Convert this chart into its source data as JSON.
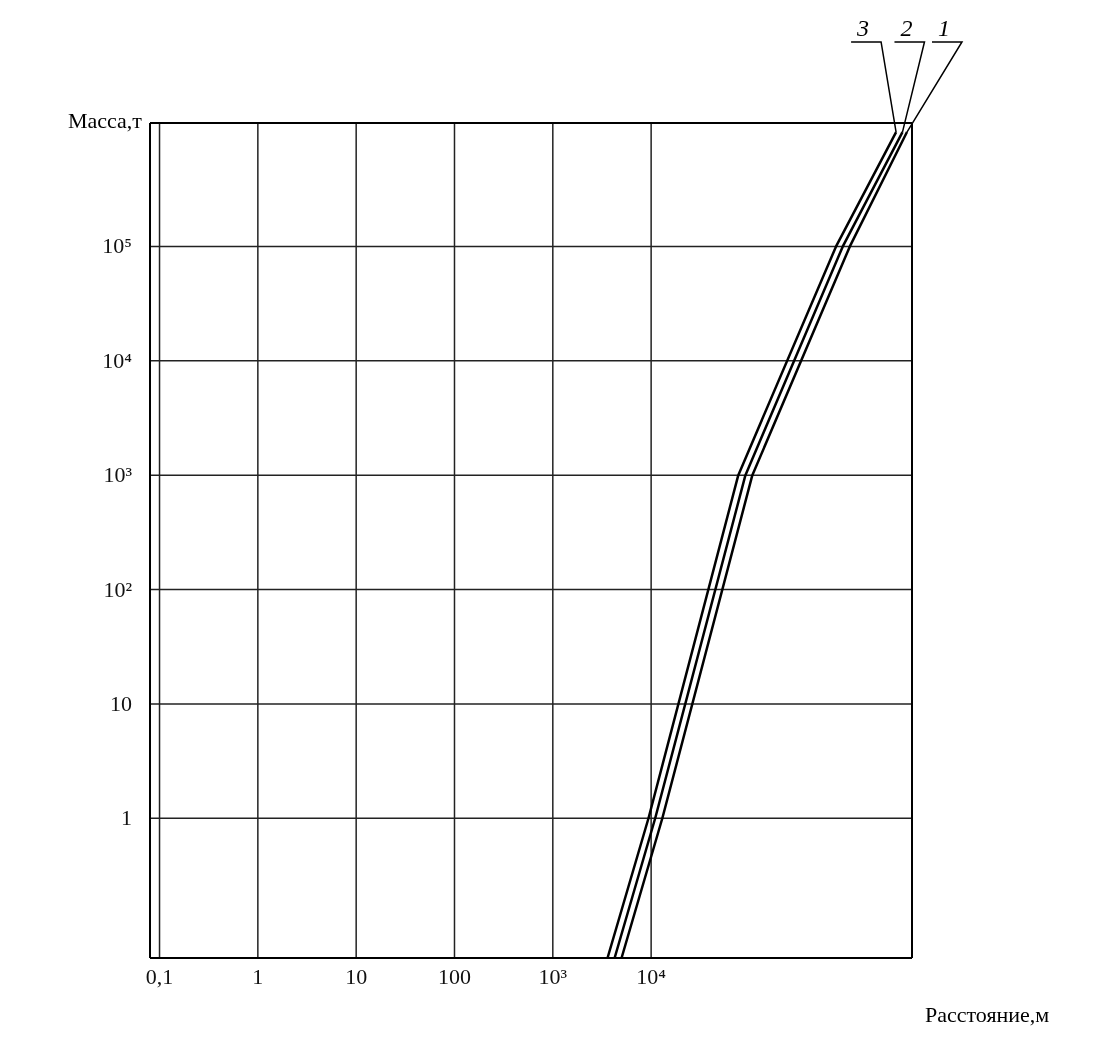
{
  "chart_data": {
    "type": "line",
    "xlabel": "Расстояние,м",
    "ylabel": "Масса,т",
    "log": "xy",
    "xlim": [
      0.08,
      4500000
    ],
    "ylim": [
      0.06,
      1200000
    ],
    "xticks": [
      {
        "value": 0.1,
        "label": "0,1"
      },
      1,
      10,
      100,
      {
        "value": 1000,
        "label": "10³"
      },
      {
        "value": 10000,
        "label": "10⁴"
      }
    ],
    "yticks": [
      1,
      10,
      {
        "value": 100,
        "label": "10²"
      },
      {
        "value": 1000,
        "label": "10³"
      },
      {
        "value": 10000,
        "label": "10⁴"
      },
      {
        "value": 100000,
        "label": "10⁵"
      }
    ],
    "grid": true,
    "marker": "none",
    "line_style": "solid",
    "series": [
      {
        "name": "1",
        "color": "#000000",
        "x": [
          5000,
          13000,
          107000,
          1050000,
          4000000
        ],
        "values": [
          0.06,
          1,
          1000,
          100000,
          1000000
        ]
      },
      {
        "name": "2",
        "color": "#000000",
        "x": [
          4250,
          11000,
          91000,
          890000,
          3600000
        ],
        "values": [
          0.06,
          1,
          1000,
          100000,
          1000000
        ]
      },
      {
        "name": "3",
        "color": "#000000",
        "x": [
          3600,
          9400,
          77000,
          760000,
          3100000
        ],
        "values": [
          0.06,
          1,
          1000,
          100000,
          1000000
        ]
      }
    ]
  }
}
